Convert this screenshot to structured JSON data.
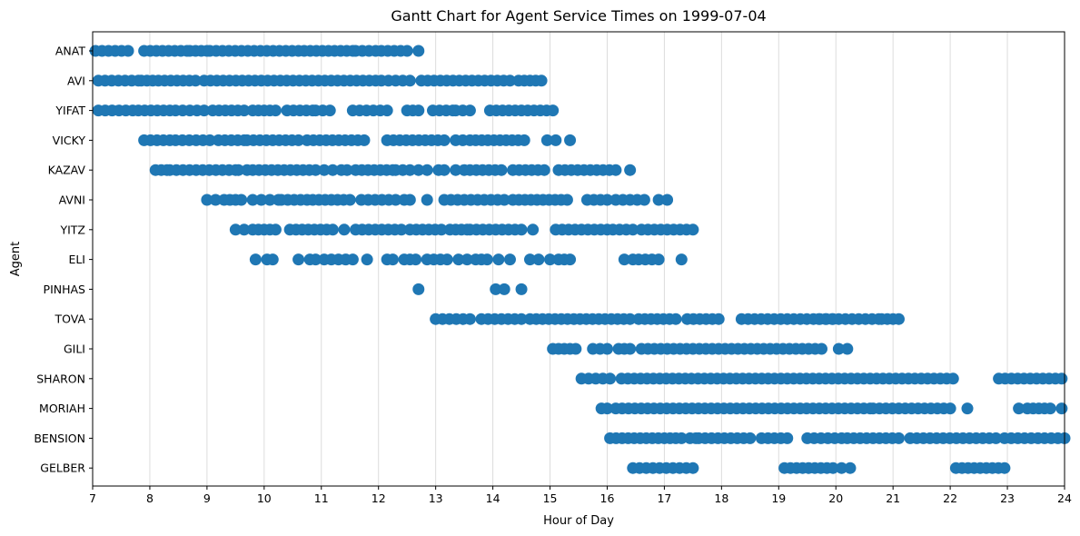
{
  "chart_data": {
    "type": "gantt",
    "title": "Gantt Chart for Agent Service Times on 1999-07-04",
    "xlabel": "Hour of Day",
    "ylabel": "Agent",
    "xlim": [
      7,
      24
    ],
    "xticks": [
      7,
      8,
      9,
      10,
      11,
      12,
      13,
      14,
      15,
      16,
      17,
      18,
      19,
      20,
      21,
      22,
      23,
      24
    ],
    "grid": "vertical",
    "color": "#1f77b4",
    "agents": [
      "ANAT",
      "AVI",
      "YIFAT",
      "VICKY",
      "KAZAV",
      "AVNI",
      "YITZ",
      "ELI",
      "PINHAS",
      "TOVA",
      "GILI",
      "SHARON",
      "MORIAH",
      "BENSION",
      "GELBER"
    ],
    "series": [
      {
        "agent": "ANAT",
        "segments": [
          [
            7.05,
            7.62
          ],
          [
            7.9,
            8.65
          ],
          [
            8.7,
            9.0
          ],
          [
            9.05,
            10.6
          ],
          [
            10.7,
            11.55
          ],
          [
            11.6,
            11.95
          ],
          [
            12.05,
            12.5
          ],
          [
            12.7,
            12.7
          ]
        ]
      },
      {
        "agent": "AVI",
        "segments": [
          [
            7.1,
            7.8
          ],
          [
            7.85,
            8.05
          ],
          [
            8.15,
            8.8
          ],
          [
            8.95,
            11.95
          ],
          [
            12.05,
            12.55
          ],
          [
            12.75,
            14.3
          ],
          [
            14.45,
            14.85
          ]
        ]
      },
      {
        "agent": "YIFAT",
        "segments": [
          [
            7.1,
            7.7
          ],
          [
            7.8,
            8.35
          ],
          [
            8.45,
            8.95
          ],
          [
            9.1,
            9.65
          ],
          [
            9.8,
            10.2
          ],
          [
            10.4,
            10.85
          ],
          [
            10.9,
            11.15
          ],
          [
            11.55,
            12.15
          ],
          [
            12.5,
            12.7
          ],
          [
            12.95,
            13.3
          ],
          [
            13.35,
            13.6
          ],
          [
            13.95,
            15.05
          ]
        ]
      },
      {
        "agent": "VICKY",
        "segments": [
          [
            7.9,
            8.35
          ],
          [
            8.45,
            9.05
          ],
          [
            9.2,
            9.65
          ],
          [
            9.7,
            10.6
          ],
          [
            10.75,
            11.75
          ],
          [
            12.15,
            13.15
          ],
          [
            13.35,
            13.6
          ],
          [
            13.7,
            14.55
          ],
          [
            14.95,
            15.1
          ],
          [
            15.35,
            15.35
          ]
        ]
      },
      {
        "agent": "KAZAV",
        "segments": [
          [
            8.1,
            8.3
          ],
          [
            8.35,
            9.5
          ],
          [
            9.55,
            9.7
          ],
          [
            9.8,
            10.9
          ],
          [
            11.05,
            11.2
          ],
          [
            11.35,
            11.45
          ],
          [
            11.6,
            12.25
          ],
          [
            12.3,
            12.55
          ],
          [
            12.7,
            12.85
          ],
          [
            13.05,
            13.15
          ],
          [
            13.35,
            13.5
          ],
          [
            13.6,
            14.15
          ],
          [
            14.35,
            14.9
          ],
          [
            15.15,
            16.15
          ],
          [
            16.4,
            16.4
          ]
        ]
      },
      {
        "agent": "AVNI",
        "segments": [
          [
            9.0,
            9.15
          ],
          [
            9.3,
            9.6
          ],
          [
            9.8,
            9.95
          ],
          [
            10.1,
            10.25
          ],
          [
            10.3,
            10.75
          ],
          [
            10.85,
            11.5
          ],
          [
            11.7,
            12.3
          ],
          [
            12.45,
            12.55
          ],
          [
            12.85,
            12.85
          ],
          [
            13.15,
            14.2
          ],
          [
            14.35,
            15.3
          ],
          [
            15.65,
            16.0
          ],
          [
            16.15,
            16.65
          ],
          [
            16.9,
            17.05
          ]
        ]
      },
      {
        "agent": "YITZ",
        "segments": [
          [
            9.5,
            9.65
          ],
          [
            9.8,
            10.2
          ],
          [
            10.45,
            11.2
          ],
          [
            11.4,
            11.4
          ],
          [
            11.6,
            12.4
          ],
          [
            12.55,
            13.1
          ],
          [
            13.25,
            13.55
          ],
          [
            13.6,
            14.5
          ],
          [
            14.7,
            14.7
          ],
          [
            15.1,
            16.0
          ],
          [
            16.1,
            16.45
          ],
          [
            16.6,
            17.5
          ]
        ]
      },
      {
        "agent": "ELI",
        "segments": [
          [
            9.85,
            9.85
          ],
          [
            10.05,
            10.15
          ],
          [
            10.6,
            10.6
          ],
          [
            10.8,
            10.9
          ],
          [
            11.05,
            11.55
          ],
          [
            11.8,
            11.8
          ],
          [
            12.15,
            12.25
          ],
          [
            12.45,
            12.65
          ],
          [
            12.85,
            13.2
          ],
          [
            13.4,
            13.55
          ],
          [
            13.7,
            13.9
          ],
          [
            14.1,
            14.1
          ],
          [
            14.3,
            14.3
          ],
          [
            14.65,
            14.8
          ],
          [
            15.0,
            15.0
          ],
          [
            15.15,
            15.35
          ],
          [
            16.3,
            16.45
          ],
          [
            16.55,
            16.9
          ],
          [
            17.3,
            17.3
          ]
        ]
      },
      {
        "agent": "PINHAS",
        "segments": [
          [
            12.7,
            12.7
          ],
          [
            14.05,
            14.2
          ],
          [
            14.5,
            14.55
          ]
        ]
      },
      {
        "agent": "TOVA",
        "segments": [
          [
            13.0,
            13.6
          ],
          [
            13.8,
            14.5
          ],
          [
            14.65,
            16.4
          ],
          [
            16.55,
            17.2
          ],
          [
            17.4,
            17.95
          ],
          [
            18.35,
            19.95
          ],
          [
            19.7,
            20.75
          ],
          [
            20.8,
            21.1
          ]
        ]
      },
      {
        "agent": "GILI",
        "segments": [
          [
            15.05,
            15.45
          ],
          [
            15.75,
            16.0
          ],
          [
            16.2,
            16.4
          ],
          [
            16.6,
            19.75
          ],
          [
            20.05,
            20.2
          ]
        ]
      },
      {
        "agent": "SHARON",
        "segments": [
          [
            15.55,
            16.05
          ],
          [
            16.25,
            22.05
          ],
          [
            22.85,
            23.95
          ]
        ]
      },
      {
        "agent": "MORIAH",
        "segments": [
          [
            15.9,
            16.0
          ],
          [
            16.15,
            20.6
          ],
          [
            20.65,
            22.0
          ],
          [
            22.3,
            22.3
          ],
          [
            23.2,
            23.35
          ],
          [
            23.45,
            23.55
          ],
          [
            23.65,
            23.75
          ],
          [
            23.95,
            24.0
          ]
        ]
      },
      {
        "agent": "BENSION",
        "segments": [
          [
            16.05,
            17.0
          ],
          [
            17.1,
            17.3
          ],
          [
            17.45,
            17.55
          ],
          [
            17.6,
            18.5
          ],
          [
            18.7,
            19.15
          ],
          [
            19.5,
            20.1
          ],
          [
            20.2,
            21.1
          ],
          [
            21.3,
            22.8
          ],
          [
            22.95,
            24.0
          ]
        ]
      },
      {
        "agent": "GELBER",
        "segments": [
          [
            16.45,
            17.5
          ],
          [
            19.1,
            19.95
          ],
          [
            20.1,
            20.25
          ],
          [
            22.1,
            22.95
          ]
        ]
      }
    ]
  }
}
